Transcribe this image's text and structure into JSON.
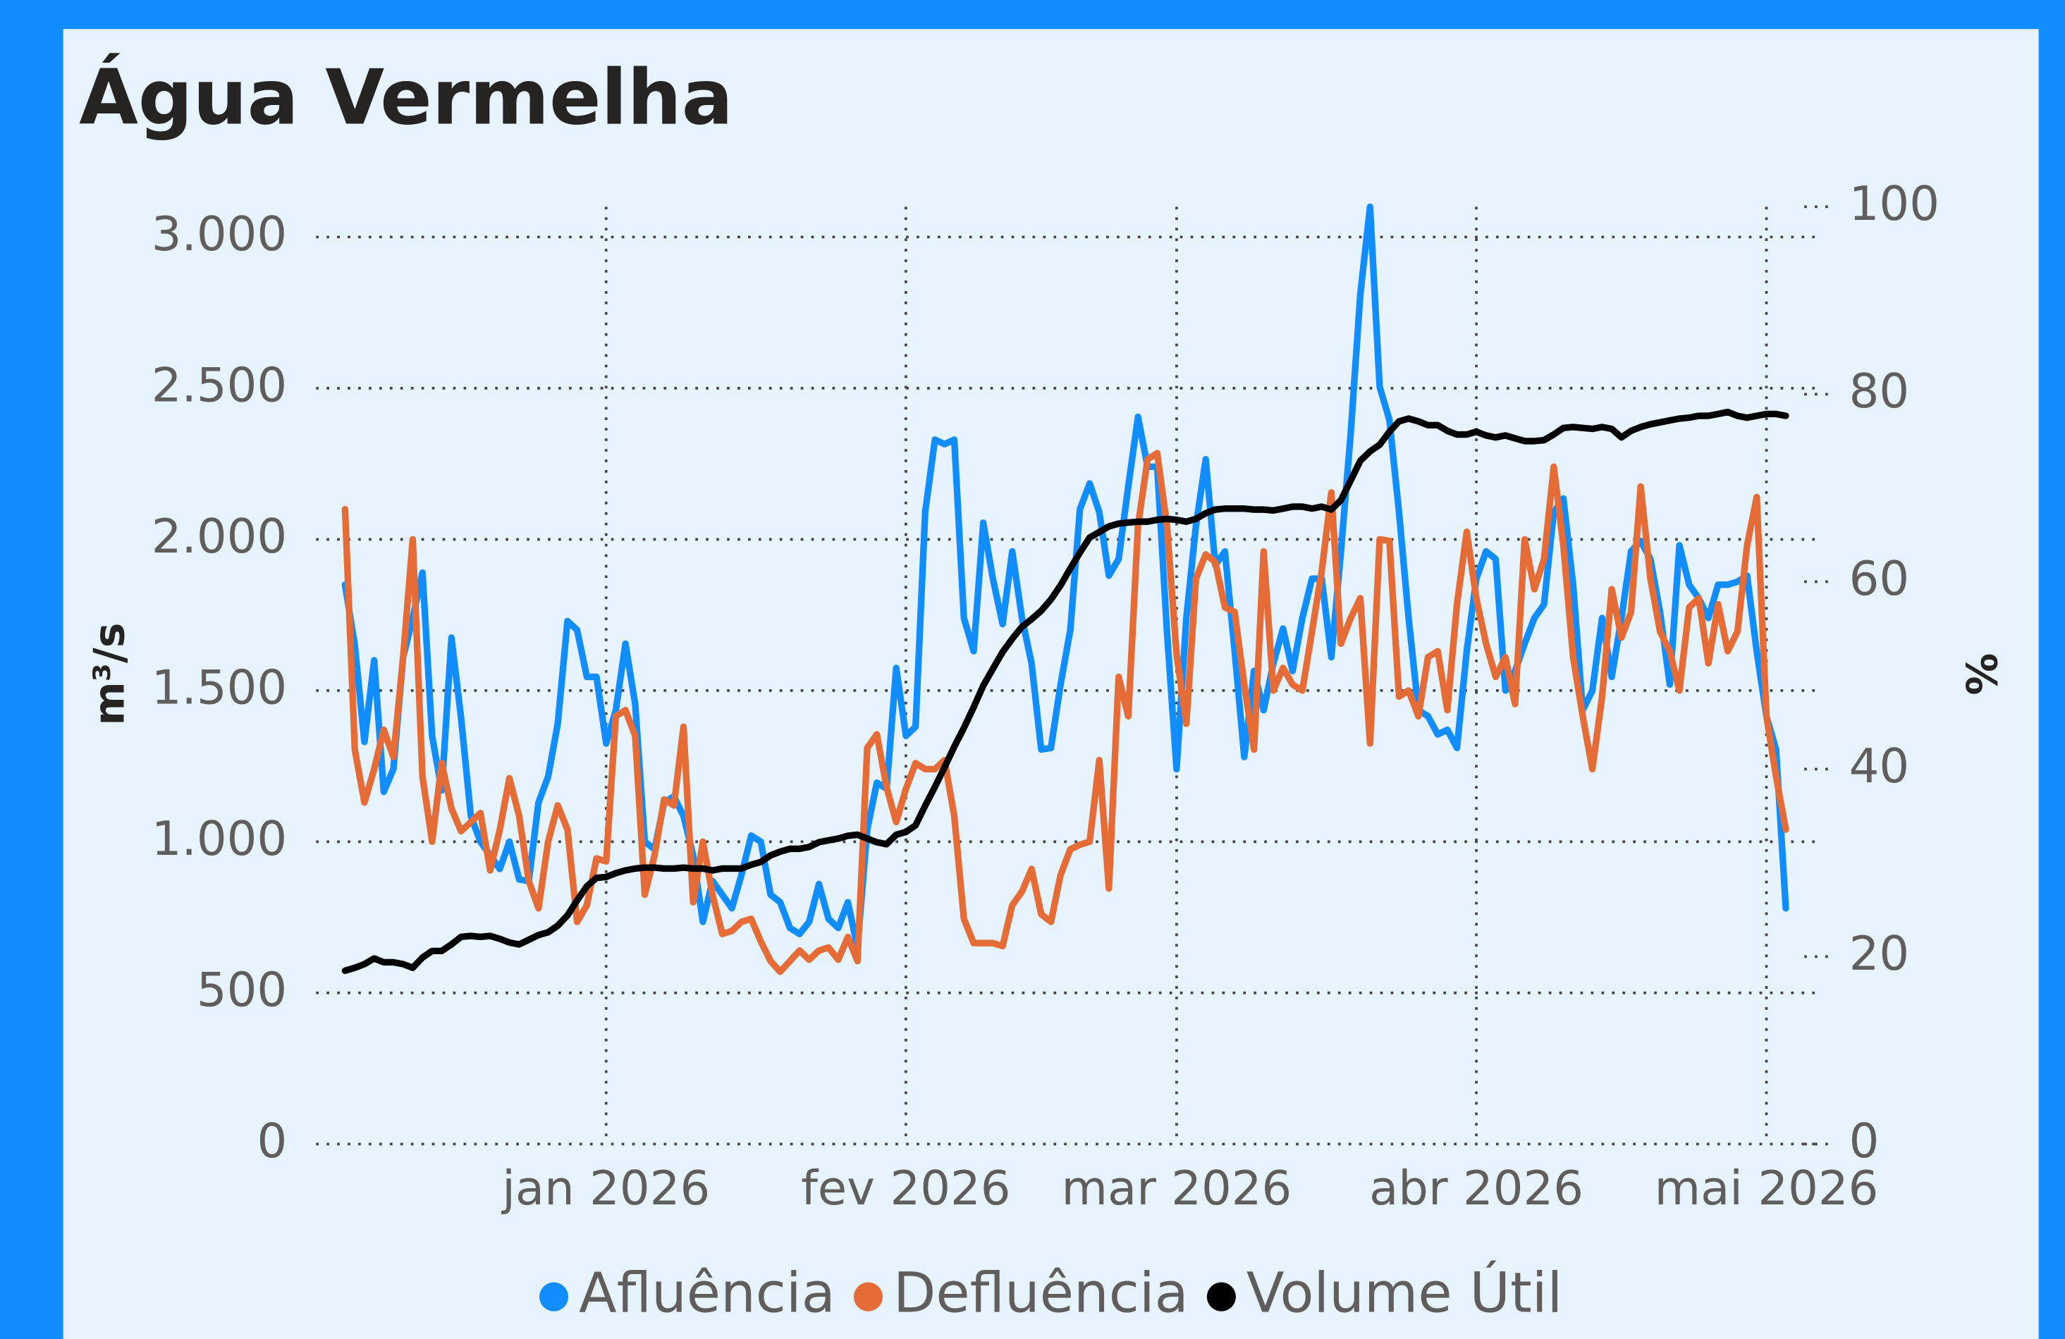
{
  "chart_data": {
    "type": "line",
    "title": "Água Vermelha",
    "y_label": "m³/s",
    "y2_label": "%",
    "legend": "bottom",
    "grid": true,
    "xlim": [
      -3,
      152
    ],
    "xticks": [
      {
        "value": 27,
        "label": "jan 2026"
      },
      {
        "value": 58,
        "label": "fev 2026"
      },
      {
        "value": 86,
        "label": "mar 2026"
      },
      {
        "value": 117,
        "label": "abr 2026"
      },
      {
        "value": 147,
        "label": "mai 2026"
      }
    ],
    "ylim": [
      0,
      3100
    ],
    "yticks": [
      0,
      500,
      {
        "value": 1000,
        "label": "1.000"
      },
      {
        "value": 1500,
        "label": "1.500"
      },
      {
        "value": 2000,
        "label": "2.000"
      },
      {
        "value": 2500,
        "label": "2.500"
      },
      {
        "value": 3000,
        "label": "3.000"
      }
    ],
    "y2lim": [
      0,
      100
    ],
    "y2ticks": [
      0,
      20,
      40,
      60,
      80,
      100
    ],
    "series": [
      {
        "name": "Afluência",
        "color": "#118dff",
        "values": [
          1850,
          1650,
          1330,
          1600,
          1165,
          1240,
          1610,
          1740,
          1890,
          1350,
          1170,
          1675,
          1410,
          1085,
          1000,
          955,
          910,
          1000,
          875,
          870,
          1130,
          1215,
          1390,
          1730,
          1700,
          1545,
          1545,
          1325,
          1435,
          1655,
          1455,
          1000,
          975,
          1130,
          1150,
          1085,
          955,
          735,
          870,
          825,
          780,
          890,
          1020,
          1000,
          825,
          800,
          715,
          695,
          735,
          860,
          745,
          715,
          800,
          650,
          1040,
          1195,
          1175,
          1575,
          1350,
          1380,
          2090,
          2330,
          2315,
          2330,
          1740,
          1630,
          2055,
          1870,
          1720,
          1960,
          1740,
          1590,
          1305,
          1310,
          1520,
          1700,
          2100,
          2185,
          2090,
          1880,
          1935,
          2175,
          2405,
          2240,
          2240,
          1695,
          1240,
          1740,
          2045,
          2265,
          1915,
          1960,
          1630,
          1280,
          1565,
          1435,
          1590,
          1705,
          1565,
          1740,
          1870,
          1870,
          1610,
          1960,
          2350,
          2810,
          3100,
          2505,
          2395,
          2090,
          1740,
          1435,
          1415,
          1355,
          1370,
          1310,
          1630,
          1870,
          1960,
          1935,
          1500,
          1565,
          1655,
          1740,
          1785,
          2090,
          2135,
          1850,
          1435,
          1500,
          1740,
          1545,
          1740,
          1960,
          1995,
          1935,
          1760,
          1520,
          1980,
          1850,
          1805,
          1740,
          1850,
          1850,
          1860,
          1880,
          1630,
          1415,
          1305,
          780
        ]
      },
      {
        "name": "Defluência",
        "color": "#e66c37",
        "values": [
          2100,
          1305,
          1130,
          1240,
          1370,
          1280,
          1610,
          2000,
          1215,
          1000,
          1260,
          1110,
          1035,
          1065,
          1095,
          905,
          1040,
          1210,
          1085,
          870,
          780,
          1000,
          1120,
          1040,
          735,
          790,
          945,
          935,
          1415,
          1435,
          1350,
          825,
          955,
          1140,
          1120,
          1380,
          800,
          1000,
          825,
          695,
          705,
          735,
          745,
          670,
          605,
          570,
          605,
          640,
          610,
          640,
          650,
          610,
          685,
          605,
          1310,
          1355,
          1180,
          1065,
          1175,
          1260,
          1240,
          1240,
          1270,
          1085,
          745,
          665,
          665,
          665,
          655,
          790,
          835,
          910,
          760,
          735,
          890,
          975,
          990,
          1000,
          1270,
          845,
          1545,
          1415,
          2045,
          2265,
          2285,
          2045,
          1620,
          1390,
          1870,
          1950,
          1925,
          1775,
          1760,
          1520,
          1305,
          1960,
          1500,
          1575,
          1520,
          1500,
          1695,
          1895,
          2155,
          1655,
          1740,
          1805,
          1325,
          2000,
          1995,
          1480,
          1500,
          1415,
          1610,
          1630,
          1435,
          1785,
          2025,
          1805,
          1655,
          1545,
          1610,
          1455,
          2000,
          1835,
          1935,
          2240,
          1980,
          1610,
          1415,
          1240,
          1480,
          1835,
          1675,
          1760,
          2175,
          1870,
          1695,
          1630,
          1500,
          1775,
          1805,
          1590,
          1785,
          1630,
          1695,
          1980,
          2140,
          1415,
          1215,
          1040
        ]
      },
      {
        "name": "Volume Útil",
        "color": "#000000",
        "axis": "y2",
        "values": [
          18.5,
          18.8,
          19.2,
          19.8,
          19.4,
          19.4,
          19.2,
          18.8,
          19.9,
          20.6,
          20.6,
          21.3,
          22.1,
          22.2,
          22.1,
          22.2,
          21.9,
          21.5,
          21.3,
          21.8,
          22.3,
          22.6,
          23.3,
          24.4,
          26.0,
          27.5,
          28.4,
          28.5,
          28.9,
          29.2,
          29.4,
          29.5,
          29.5,
          29.4,
          29.4,
          29.5,
          29.4,
          29.4,
          29.2,
          29.4,
          29.4,
          29.4,
          29.8,
          30.1,
          30.8,
          31.2,
          31.5,
          31.5,
          31.7,
          32.2,
          32.4,
          32.6,
          32.9,
          33.0,
          32.6,
          32.2,
          32.0,
          33.0,
          33.3,
          34.0,
          36.1,
          38.1,
          40.2,
          42.4,
          44.4,
          46.6,
          48.9,
          50.7,
          52.5,
          53.9,
          55.2,
          56.0,
          56.9,
          58.1,
          59.6,
          61.4,
          63.1,
          64.7,
          65.3,
          65.9,
          66.2,
          66.3,
          66.4,
          66.4,
          66.6,
          66.7,
          66.6,
          66.4,
          66.7,
          67.3,
          67.7,
          67.8,
          67.8,
          67.8,
          67.7,
          67.7,
          67.6,
          67.8,
          68.0,
          68.0,
          67.8,
          68.0,
          67.7,
          68.7,
          70.8,
          72.9,
          73.9,
          74.6,
          76.0,
          77.1,
          77.4,
          77.1,
          76.7,
          76.7,
          76.1,
          75.7,
          75.7,
          76.0,
          75.6,
          75.4,
          75.6,
          75.3,
          75.0,
          75.0,
          75.1,
          75.7,
          76.4,
          76.5,
          76.4,
          76.3,
          76.5,
          76.3,
          75.4,
          76.1,
          76.5,
          76.8,
          77.0,
          77.2,
          77.4,
          77.5,
          77.7,
          77.7,
          77.9,
          78.1,
          77.7,
          77.5,
          77.7,
          77.9,
          77.9,
          77.7
        ]
      }
    ]
  }
}
